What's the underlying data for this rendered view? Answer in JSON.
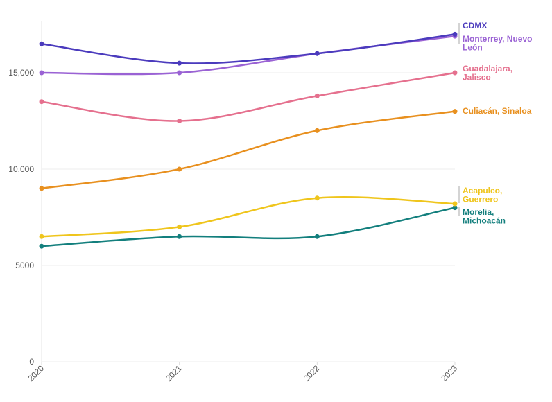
{
  "chart_data": {
    "type": "line",
    "title": "",
    "xlabel": "",
    "ylabel": "",
    "x": [
      "2020",
      "2021",
      "2022",
      "2023"
    ],
    "ylim": [
      0,
      17700
    ],
    "yticks": [
      0,
      5000,
      10000,
      15000
    ],
    "ytick_labels": [
      "0",
      "5000",
      "10,000",
      "15,000"
    ],
    "grid": true,
    "smooth": true,
    "legend": "direct labels at right end of lines",
    "series": [
      {
        "name": "CDMX",
        "label_lines": [
          "CDMX"
        ],
        "color": "#4b3bbd",
        "values": [
          16500,
          15500,
          16000,
          17000
        ]
      },
      {
        "name": "Monterrey, Nuevo León",
        "label_lines": [
          "Monterrey, Nuevo",
          "León"
        ],
        "color": "#9a62d4",
        "values": [
          15000,
          15000,
          16000,
          16900
        ]
      },
      {
        "name": "Guadalajara, Jalisco",
        "label_lines": [
          "Guadalajara,",
          "Jalisco"
        ],
        "color": "#e5708e",
        "values": [
          13500,
          12500,
          13800,
          15000
        ]
      },
      {
        "name": "Culiacán, Sinaloa",
        "label_lines": [
          "Culiacán, Sinaloa"
        ],
        "color": "#e8901f",
        "values": [
          9000,
          10000,
          12000,
          13000
        ]
      },
      {
        "name": "Acapulco, Guerrero",
        "label_lines": [
          "Acapulco,",
          "Guerrero"
        ],
        "color": "#efc51c",
        "values": [
          6500,
          7000,
          8500,
          8200
        ]
      },
      {
        "name": "Morelia, Michoacán",
        "label_lines": [
          "Morelia,",
          "Michoacán"
        ],
        "color": "#137f7d",
        "values": [
          6000,
          6500,
          6500,
          8000
        ]
      }
    ]
  }
}
